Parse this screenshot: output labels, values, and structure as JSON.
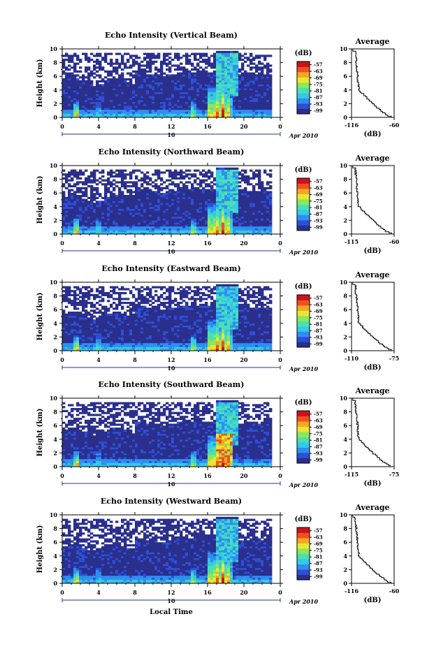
{
  "chart_data": {
    "type": "heatmap",
    "panels": [
      {
        "title": "Echo Intensity (Vertical Beam)",
        "avg_xticks": [
          "-116",
          "-60"
        ],
        "avg_xlim": [
          -116,
          -60
        ],
        "avg_profile": [
          [
            -113,
            0
          ],
          [
            -112,
            0.6
          ],
          [
            -110,
            1.4
          ],
          [
            -111,
            2.2
          ],
          [
            -110,
            3.0
          ],
          [
            -109,
            4.0
          ],
          [
            -108,
            5.0
          ],
          [
            -110,
            6.0
          ],
          [
            -112,
            7.0
          ],
          [
            -113,
            8.0
          ],
          [
            -114,
            9.0
          ],
          [
            -115,
            10
          ],
          [
            -104,
            3.2
          ],
          [
            -95,
            2.4
          ],
          [
            -85,
            1.4
          ],
          [
            -75,
            0.8
          ],
          [
            -60,
            0
          ]
        ]
      },
      {
        "title": "Echo Intensity (Northward Beam)",
        "avg_xticks": [
          "-115",
          "-60"
        ],
        "avg_xlim": [
          -115,
          -60
        ],
        "avg_profile": [
          [
            -112,
            0
          ],
          [
            -110,
            1.0
          ],
          [
            -108,
            2.0
          ],
          [
            -107,
            3.0
          ],
          [
            -108,
            4.0
          ],
          [
            -109,
            5.0
          ],
          [
            -111,
            6.0
          ],
          [
            -112,
            7.0
          ],
          [
            -113,
            8.0
          ],
          [
            -114,
            9.0
          ],
          [
            -115,
            10
          ],
          [
            -100,
            2.4
          ],
          [
            -90,
            1.6
          ],
          [
            -80,
            1.0
          ],
          [
            -70,
            0.5
          ],
          [
            -60,
            0
          ]
        ]
      },
      {
        "title": "Echo Intensity (Eastward Beam)",
        "avg_xticks": [
          "-110",
          "-75"
        ],
        "avg_xlim": [
          -110,
          -75
        ],
        "avg_profile": [
          [
            -108,
            0
          ],
          [
            -107,
            1.0
          ],
          [
            -105,
            2.0
          ],
          [
            -104,
            3.0
          ],
          [
            -105,
            4.0
          ],
          [
            -106,
            5.0
          ],
          [
            -107,
            6.0
          ],
          [
            -108,
            7.0
          ],
          [
            -109,
            8.0
          ],
          [
            -109,
            9.0
          ],
          [
            -110,
            10
          ],
          [
            -97,
            2.4
          ],
          [
            -90,
            1.6
          ],
          [
            -84,
            1.0
          ],
          [
            -78,
            0.5
          ],
          [
            -75,
            0
          ]
        ]
      },
      {
        "title": "Echo Intensity (Southward Beam)",
        "avg_xticks": [
          "-115",
          "-75"
        ],
        "avg_xlim": [
          -115,
          -75
        ],
        "avg_profile": [
          [
            -112,
            0
          ],
          [
            -111,
            1.0
          ],
          [
            -109,
            2.0
          ],
          [
            -108,
            3.0
          ],
          [
            -109,
            4.0
          ],
          [
            -110,
            5.0
          ],
          [
            -111,
            6.0
          ],
          [
            -112,
            7.0
          ],
          [
            -113,
            8.0
          ],
          [
            -114,
            9.0
          ],
          [
            -115,
            10
          ],
          [
            -102,
            2.4
          ],
          [
            -94,
            1.6
          ],
          [
            -86,
            1.0
          ],
          [
            -79,
            0.5
          ],
          [
            -75,
            0
          ]
        ]
      },
      {
        "title": "Echo Intensity (Westward Beam)",
        "avg_xticks": [
          "-116",
          "-60"
        ],
        "avg_xlim": [
          -116,
          -60
        ],
        "avg_profile": [
          [
            -113,
            0
          ],
          [
            -111,
            1.0
          ],
          [
            -109,
            2.0
          ],
          [
            -108,
            3.0
          ],
          [
            -106,
            4.0
          ],
          [
            -107,
            5.0
          ],
          [
            -109,
            6.0
          ],
          [
            -111,
            7.0
          ],
          [
            -113,
            8.0
          ],
          [
            -114,
            9.0
          ],
          [
            -116,
            10
          ],
          [
            -102,
            2.4
          ],
          [
            -92,
            1.6
          ],
          [
            -82,
            1.0
          ],
          [
            -70,
            0.5
          ],
          [
            -60,
            0
          ]
        ]
      }
    ],
    "ylabel": "Height (km)",
    "ylim": [
      0,
      10
    ],
    "yticks": [
      "0",
      "2",
      "4",
      "6",
      "8",
      "10"
    ],
    "xlim": [
      0,
      24
    ],
    "xticks": [
      "0",
      "4",
      "8",
      "12",
      "16",
      "20",
      "0"
    ],
    "date_mid": "10",
    "date_label": "Apr 2010",
    "xlabel": "Local Time",
    "colorbar_unit": "(dB)",
    "colorbar_ticks": [
      "-57",
      "-63",
      "-69",
      "-75",
      "-81",
      "-87",
      "-93",
      "-99"
    ],
    "colorbar_range": [
      -102,
      -54
    ],
    "avg_title": "Average",
    "avg_xlabel": "(dB)",
    "avg_yticks": [
      "0",
      "2",
      "4",
      "6",
      "8",
      "10"
    ],
    "colorscale": [
      "#2b2f8c",
      "#2d4fd6",
      "#2f8ff0",
      "#35c8e8",
      "#4be0b0",
      "#8ee65a",
      "#e8e830",
      "#f5a623",
      "#f0501e",
      "#c8141e"
    ]
  }
}
